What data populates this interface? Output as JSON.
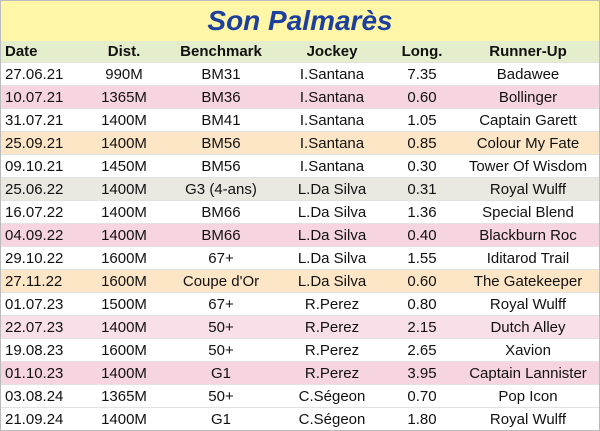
{
  "header": {
    "title": "Son Palmarès"
  },
  "table": {
    "columns": [
      "Date",
      "Dist.",
      "Benchmark",
      "Jockey",
      "Long.",
      "Runner-Up"
    ],
    "rows": [
      [
        "27.06.21",
        "990M",
        "BM31",
        "I.Santana",
        "7.35",
        "Badawee"
      ],
      [
        "10.07.21",
        "1365M",
        "BM36",
        "I.Santana",
        "0.60",
        "Bollinger"
      ],
      [
        "31.07.21",
        "1400M",
        "BM41",
        "I.Santana",
        "1.05",
        "Captain Garett"
      ],
      [
        "25.09.21",
        "1400M",
        "BM56",
        "I.Santana",
        "0.85",
        "Colour My Fate"
      ],
      [
        "09.10.21",
        "1450M",
        "BM56",
        "I.Santana",
        "0.30",
        "Tower Of Wisdom"
      ],
      [
        "25.06.22",
        "1400M",
        "G3 (4-ans)",
        "L.Da Silva",
        "0.31",
        "Royal Wulff"
      ],
      [
        "16.07.22",
        "1400M",
        "BM66",
        "L.Da Silva",
        "1.36",
        "Special Blend"
      ],
      [
        "04.09.22",
        "1400M",
        "BM66",
        "L.Da Silva",
        "0.40",
        "Blackburn Roc"
      ],
      [
        "29.10.22",
        "1600M",
        "67+",
        "L.Da Silva",
        "1.55",
        "Iditarod Trail"
      ],
      [
        "27.11.22",
        "1600M",
        "Coupe d'Or",
        "L.Da Silva",
        "0.60",
        "The Gatekeeper"
      ],
      [
        "01.07.23",
        "1500M",
        "67+",
        "R.Perez",
        "0.80",
        "Royal Wulff"
      ],
      [
        "22.07.23",
        "1400M",
        "50+",
        "R.Perez",
        "2.15",
        "Dutch Alley"
      ],
      [
        "19.08.23",
        "1600M",
        "50+",
        "R.Perez",
        "2.65",
        "Xavion"
      ],
      [
        "01.10.23",
        "1400M",
        "G1",
        "R.Perez",
        "3.95",
        "Captain Lannister"
      ],
      [
        "03.08.24",
        "1365M",
        "50+",
        "C.Ségeon",
        "0.70",
        "Pop Icon"
      ],
      [
        "21.09.24",
        "1400M",
        "G1",
        "C.Ségeon",
        "1.80",
        "Royal Wulff"
      ]
    ]
  }
}
